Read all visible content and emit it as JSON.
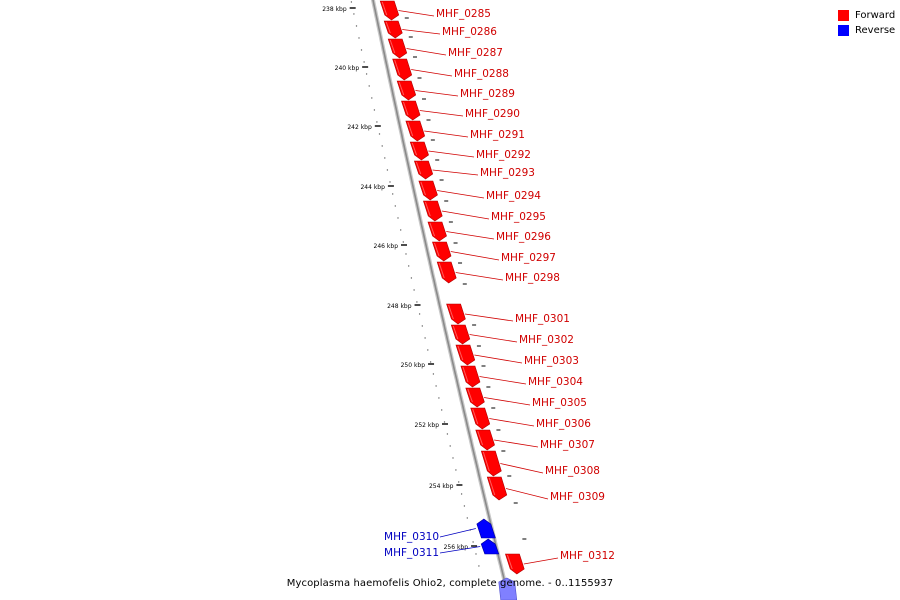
{
  "colors": {
    "forward": "#ff0000",
    "reverse": "#0000ff",
    "backbone": "#999999"
  },
  "legend": {
    "items": [
      {
        "label": "Forward",
        "color": "#ff0000"
      },
      {
        "label": "Reverse",
        "color": "#0000ff"
      }
    ]
  },
  "caption": "Mycoplasma haemofelis Ohio2, complete genome. - 0..1155937",
  "ticks": [
    "238 kbp",
    "240 kbp",
    "242 kbp",
    "244 kbp",
    "246 kbp",
    "248 kbp",
    "250 kbp",
    "252 kbp",
    "254 kbp",
    "256 kbp"
  ],
  "genes": [
    {
      "label": "MHF_0285",
      "strand": "forward"
    },
    {
      "label": "MHF_0286",
      "strand": "forward"
    },
    {
      "label": "MHF_0287",
      "strand": "forward"
    },
    {
      "label": "MHF_0288",
      "strand": "forward"
    },
    {
      "label": "MHF_0289",
      "strand": "forward"
    },
    {
      "label": "MHF_0290",
      "strand": "forward"
    },
    {
      "label": "MHF_0291",
      "strand": "forward"
    },
    {
      "label": "MHF_0292",
      "strand": "forward"
    },
    {
      "label": "MHF_0293",
      "strand": "forward"
    },
    {
      "label": "MHF_0294",
      "strand": "forward"
    },
    {
      "label": "MHF_0295",
      "strand": "forward"
    },
    {
      "label": "MHF_0296",
      "strand": "forward"
    },
    {
      "label": "MHF_0297",
      "strand": "forward"
    },
    {
      "label": "MHF_0298",
      "strand": "forward"
    },
    {
      "label": "MHF_0301",
      "strand": "forward"
    },
    {
      "label": "MHF_0302",
      "strand": "forward"
    },
    {
      "label": "MHF_0303",
      "strand": "forward"
    },
    {
      "label": "MHF_0304",
      "strand": "forward"
    },
    {
      "label": "MHF_0305",
      "strand": "forward"
    },
    {
      "label": "MHF_0306",
      "strand": "forward"
    },
    {
      "label": "MHF_0307",
      "strand": "forward"
    },
    {
      "label": "MHF_0308",
      "strand": "forward"
    },
    {
      "label": "MHF_0309",
      "strand": "forward"
    },
    {
      "label": "MHF_0310",
      "strand": "reverse"
    },
    {
      "label": "MHF_0311",
      "strand": "reverse"
    },
    {
      "label": "MHF_0312",
      "strand": "forward"
    }
  ]
}
